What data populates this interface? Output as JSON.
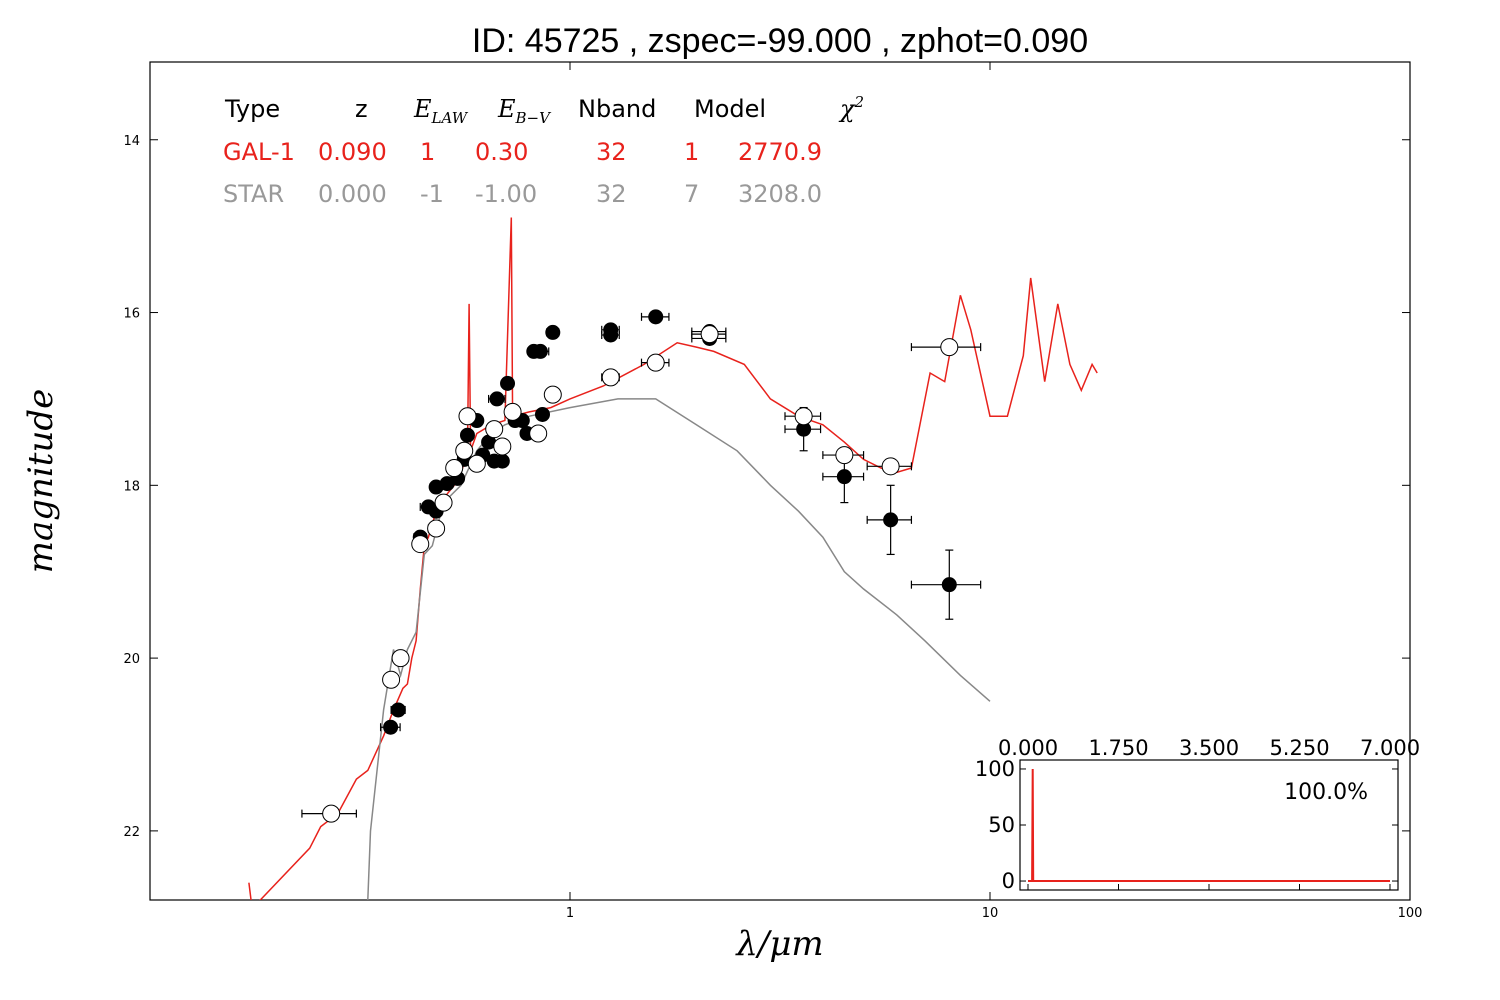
{
  "chart_data": {
    "type": "scatter",
    "title": "ID:  45725 , zspec=-99.000 , zphot=0.090",
    "xlabel": "λ/μm",
    "ylabel": "magnitude",
    "xscale": "log",
    "xlim": [
      0.1,
      100
    ],
    "ylim": [
      22.8,
      13.1
    ],
    "y_inverted": true,
    "x_tick_labels": [
      {
        "value": 1,
        "label": "1"
      },
      {
        "value": 10,
        "label": "10"
      },
      {
        "value": 100,
        "label": "100"
      }
    ],
    "y_tick_labels": [
      {
        "value": 14,
        "label": "14"
      },
      {
        "value": 16,
        "label": "16"
      },
      {
        "value": 18,
        "label": "18"
      },
      {
        "value": 20,
        "label": "20"
      },
      {
        "value": 22,
        "label": "22"
      }
    ],
    "fit_table": {
      "headers": [
        "Type",
        "z",
        "E_LAW",
        "E_B-V",
        "Nband",
        "Model",
        "χ2"
      ],
      "rows": [
        {
          "name": "GAL-1",
          "color": "#e8221c",
          "values": [
            "GAL-1",
            "0.090",
            "1",
            "0.30",
            "32",
            "1",
            "2770.9"
          ]
        },
        {
          "name": "STAR",
          "color": "#999999",
          "values": [
            "STAR",
            "0.000",
            "-1",
            "-1.00",
            "32",
            "7",
            "3208.0"
          ]
        }
      ]
    },
    "series": [
      {
        "name": "GAL-1",
        "kind": "line",
        "color": "#e8221c",
        "points": [
          [
            0.172,
            22.6
          ],
          [
            0.175,
            22.9
          ],
          [
            0.24,
            22.2
          ],
          [
            0.255,
            21.95
          ],
          [
            0.28,
            21.8
          ],
          [
            0.31,
            21.4
          ],
          [
            0.33,
            21.3
          ],
          [
            0.36,
            20.9
          ],
          [
            0.38,
            20.6
          ],
          [
            0.4,
            20.35
          ],
          [
            0.41,
            20.3
          ],
          [
            0.42,
            20.0
          ],
          [
            0.43,
            19.8
          ],
          [
            0.44,
            19.2
          ],
          [
            0.45,
            18.7
          ],
          [
            0.46,
            18.6
          ],
          [
            0.48,
            18.3
          ],
          [
            0.5,
            18.15
          ],
          [
            0.53,
            18.0
          ],
          [
            0.555,
            17.8
          ],
          [
            0.57,
            17.6
          ],
          [
            0.575,
            15.9
          ],
          [
            0.58,
            17.6
          ],
          [
            0.6,
            17.4
          ],
          [
            0.65,
            17.3
          ],
          [
            0.7,
            17.25
          ],
          [
            0.725,
            14.9
          ],
          [
            0.73,
            17.2
          ],
          [
            0.8,
            17.15
          ],
          [
            0.9,
            17.1
          ],
          [
            1.0,
            17.0
          ],
          [
            1.2,
            16.85
          ],
          [
            1.5,
            16.6
          ],
          [
            1.8,
            16.35
          ],
          [
            2.0,
            16.4
          ],
          [
            2.2,
            16.45
          ],
          [
            2.6,
            16.6
          ],
          [
            3.0,
            17.0
          ],
          [
            3.5,
            17.2
          ],
          [
            4.0,
            17.3
          ],
          [
            4.5,
            17.5
          ],
          [
            5.0,
            17.7
          ],
          [
            5.5,
            17.8
          ],
          [
            6.0,
            17.85
          ],
          [
            6.5,
            17.8
          ],
          [
            7.2,
            16.7
          ],
          [
            7.8,
            16.8
          ],
          [
            8.5,
            15.8
          ],
          [
            9.0,
            16.2
          ],
          [
            10.0,
            17.2
          ],
          [
            11.0,
            17.2
          ],
          [
            12.0,
            16.5
          ],
          [
            12.5,
            15.6
          ],
          [
            13.5,
            16.8
          ],
          [
            14.5,
            15.9
          ],
          [
            15.5,
            16.6
          ],
          [
            16.5,
            16.9
          ],
          [
            17.5,
            16.6
          ],
          [
            18.0,
            16.7
          ]
        ]
      },
      {
        "name": "STAR",
        "kind": "line",
        "color": "#888888",
        "points": [
          [
            0.33,
            22.8
          ],
          [
            0.335,
            22.0
          ],
          [
            0.36,
            20.6
          ],
          [
            0.38,
            19.9
          ],
          [
            0.395,
            20.2
          ],
          [
            0.41,
            19.9
          ],
          [
            0.43,
            19.7
          ],
          [
            0.45,
            18.8
          ],
          [
            0.47,
            18.7
          ],
          [
            0.5,
            18.2
          ],
          [
            0.55,
            18.0
          ],
          [
            0.6,
            17.6
          ],
          [
            0.65,
            17.4
          ],
          [
            0.7,
            17.3
          ],
          [
            0.8,
            17.2
          ],
          [
            1.0,
            17.1
          ],
          [
            1.3,
            17.0
          ],
          [
            1.6,
            17.0
          ],
          [
            2.0,
            17.3
          ],
          [
            2.5,
            17.6
          ],
          [
            3.0,
            18.0
          ],
          [
            3.5,
            18.3
          ],
          [
            4.0,
            18.6
          ],
          [
            4.5,
            19.0
          ],
          [
            5.0,
            19.2
          ],
          [
            6.0,
            19.5
          ],
          [
            7.0,
            19.8
          ],
          [
            8.5,
            20.2
          ],
          [
            10.0,
            20.5
          ]
        ]
      },
      {
        "name": "observed",
        "kind": "filled-points",
        "points": [
          {
            "x": 0.374,
            "y": 20.8,
            "xerr": 0.02
          },
          {
            "x": 0.39,
            "y": 20.6,
            "xerr": 0.015
          },
          {
            "x": 0.44,
            "y": 18.6,
            "xerr": 0.015
          },
          {
            "x": 0.46,
            "y": 18.25,
            "xerr": 0.02
          },
          {
            "x": 0.48,
            "y": 18.3,
            "xerr": 0.015
          },
          {
            "x": 0.48,
            "y": 18.02,
            "xerr": 0.015
          },
          {
            "x": 0.51,
            "y": 17.98,
            "xerr": 0.015
          },
          {
            "x": 0.54,
            "y": 17.92,
            "xerr": 0.015
          },
          {
            "x": 0.56,
            "y": 17.7,
            "xerr": 0.02
          },
          {
            "x": 0.57,
            "y": 17.42,
            "xerr": 0.015
          },
          {
            "x": 0.6,
            "y": 17.25,
            "xerr": 0.015
          },
          {
            "x": 0.62,
            "y": 17.65,
            "xerr": 0.015
          },
          {
            "x": 0.64,
            "y": 17.5,
            "xerr": 0.015
          },
          {
            "x": 0.66,
            "y": 17.72,
            "xerr": 0.015
          },
          {
            "x": 0.67,
            "y": 17.0,
            "xerr": 0.03
          },
          {
            "x": 0.69,
            "y": 17.72,
            "xerr": 0.015
          },
          {
            "x": 0.71,
            "y": 16.82,
            "xerr": 0.015
          },
          {
            "x": 0.74,
            "y": 17.25,
            "xerr": 0.015
          },
          {
            "x": 0.77,
            "y": 17.25,
            "xerr": 0.015
          },
          {
            "x": 0.79,
            "y": 17.4,
            "xerr": 0.015
          },
          {
            "x": 0.82,
            "y": 16.45,
            "xerr": 0.025
          },
          {
            "x": 0.85,
            "y": 16.45,
            "xerr": 0.04
          },
          {
            "x": 0.86,
            "y": 17.18,
            "xerr": 0.015
          },
          {
            "x": 0.91,
            "y": 16.23,
            "xerr": 0.03
          },
          {
            "x": 1.25,
            "y": 16.2,
            "xerr": 0.06
          },
          {
            "x": 1.25,
            "y": 16.26,
            "xerr": 0.06
          },
          {
            "x": 1.6,
            "y": 16.05,
            "xerr": 0.12
          },
          {
            "x": 2.15,
            "y": 16.3,
            "xerr": 0.2
          },
          {
            "x": 2.15,
            "y": 16.22,
            "xerr": 0.2
          },
          {
            "x": 3.6,
            "y": 17.35,
            "xerr": 0.35,
            "yerr": 0.25
          },
          {
            "x": 4.5,
            "y": 17.9,
            "xerr": 0.5,
            "yerr": 0.3
          },
          {
            "x": 5.8,
            "y": 18.4,
            "xerr": 0.7,
            "yerr": 0.4
          },
          {
            "x": 8.0,
            "y": 19.15,
            "xerr": 1.5,
            "yerr": 0.4
          }
        ]
      },
      {
        "name": "model",
        "kind": "open-points",
        "points": [
          {
            "x": 0.27,
            "y": 21.8,
            "xerr": 0.04
          },
          {
            "x": 0.375,
            "y": 20.25,
            "xerr": 0.015
          },
          {
            "x": 0.395,
            "y": 20.0,
            "xerr": 0.015
          },
          {
            "x": 0.44,
            "y": 18.68,
            "xerr": 0.015
          },
          {
            "x": 0.48,
            "y": 18.5,
            "xerr": 0.02
          },
          {
            "x": 0.5,
            "y": 18.2,
            "xerr": 0.015
          },
          {
            "x": 0.53,
            "y": 17.8,
            "xerr": 0.015
          },
          {
            "x": 0.56,
            "y": 17.6,
            "xerr": 0.015
          },
          {
            "x": 0.57,
            "y": 17.2,
            "xerr": 0.015
          },
          {
            "x": 0.6,
            "y": 17.75,
            "xerr": 0.015
          },
          {
            "x": 0.66,
            "y": 17.35,
            "xerr": 0.015
          },
          {
            "x": 0.69,
            "y": 17.55,
            "xerr": 0.015
          },
          {
            "x": 0.73,
            "y": 17.15,
            "xerr": 0.015
          },
          {
            "x": 0.84,
            "y": 17.4,
            "xerr": 0.015
          },
          {
            "x": 0.91,
            "y": 16.95,
            "xerr": 0.025
          },
          {
            "x": 1.25,
            "y": 16.75,
            "xerr": 0.06
          },
          {
            "x": 1.6,
            "y": 16.58,
            "xerr": 0.12
          },
          {
            "x": 2.15,
            "y": 16.25,
            "xerr": 0.2
          },
          {
            "x": 3.6,
            "y": 17.2,
            "xerr": 0.35
          },
          {
            "x": 4.5,
            "y": 17.65,
            "xerr": 0.5
          },
          {
            "x": 5.8,
            "y": 17.78,
            "xerr": 0.7
          },
          {
            "x": 8.0,
            "y": 16.4,
            "xerr": 1.5
          }
        ]
      }
    ],
    "inset": {
      "type": "line",
      "xlim": [
        0,
        7
      ],
      "ylim": [
        -8,
        108
      ],
      "x_tick_labels": [
        "0.000",
        "1.750",
        "3.500",
        "5.250",
        "7.000"
      ],
      "x_ticks": [
        0,
        1.75,
        3.5,
        5.25,
        7
      ],
      "y_tick_labels": [
        "100",
        "50",
        "0"
      ],
      "y_ticks": [
        100,
        50,
        0
      ],
      "annotation": "100.0%",
      "color": "#e8221c",
      "points": [
        [
          0.0,
          0
        ],
        [
          0.08,
          0
        ],
        [
          0.09,
          100
        ],
        [
          0.1,
          0
        ],
        [
          7.0,
          0
        ]
      ]
    }
  }
}
